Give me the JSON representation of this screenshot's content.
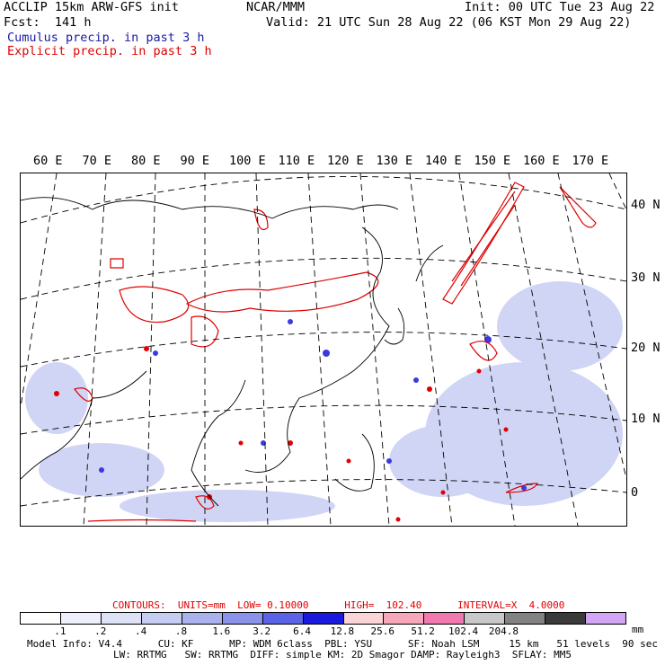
{
  "header": {
    "model_title": "ACCLIP 15km ARW-GFS init",
    "forecast": "Fcst:  141 h",
    "org": "NCAR/MMM",
    "init": "Init: 00 UTC Tue 23 Aug 22",
    "valid": "Valid: 21 UTC Sun 28 Aug 22 (06 KST Mon 29 Aug 22)",
    "cumulus_label": "Cumulus precip. in past 3 h",
    "explicit_label": "Explicit precip. in past 3 h"
  },
  "colors": {
    "cumulus": "#1a1aa6",
    "explicit": "#e00000",
    "coast": "#000000",
    "grid": "#000000"
  },
  "map": {
    "lon_labels": [
      "60 E",
      "70 E",
      "80 E",
      "90 E",
      "100 E",
      "110 E",
      "120 E",
      "130 E",
      "140 E",
      "150 E",
      "160 E",
      "170 E"
    ],
    "lat_labels": [
      "40 N",
      "30 N",
      "20 N",
      "10 N",
      "0"
    ]
  },
  "contours_line": "CONTOURS:  UNITS=mm  LOW= 0.10000      HIGH=  102.40      INTERVAL=X  4.0000",
  "colorbar": {
    "colors": [
      "#ffffff",
      "#eef0fb",
      "#dde2f7",
      "#c6cdf2",
      "#aab2ee",
      "#8a92ea",
      "#5b63e6",
      "#1a1adf",
      "#fad4d6",
      "#f6a8ba",
      "#f07ab0",
      "#c8c8c8",
      "#828282",
      "#3a3a3a",
      "#d3a6f5"
    ],
    "labels": [
      ".1",
      ".2",
      ".4",
      ".8",
      "1.6",
      "3.2",
      "6.4",
      "12.8",
      "25.6",
      "51.2",
      "102.4",
      "204.8"
    ],
    "unit": "mm"
  },
  "footer": {
    "line1": "Model Info: V4.4      CU: KF      MP: WDM 6class  PBL: YSU      SF: Noah LSM     15 km   51 levels  90 sec",
    "line2": "LW: RRTMG   SW: RRTMG  DIFF: simple KM: 2D Smagor DAMP: Rayleigh3  SFLAY: MM5"
  }
}
